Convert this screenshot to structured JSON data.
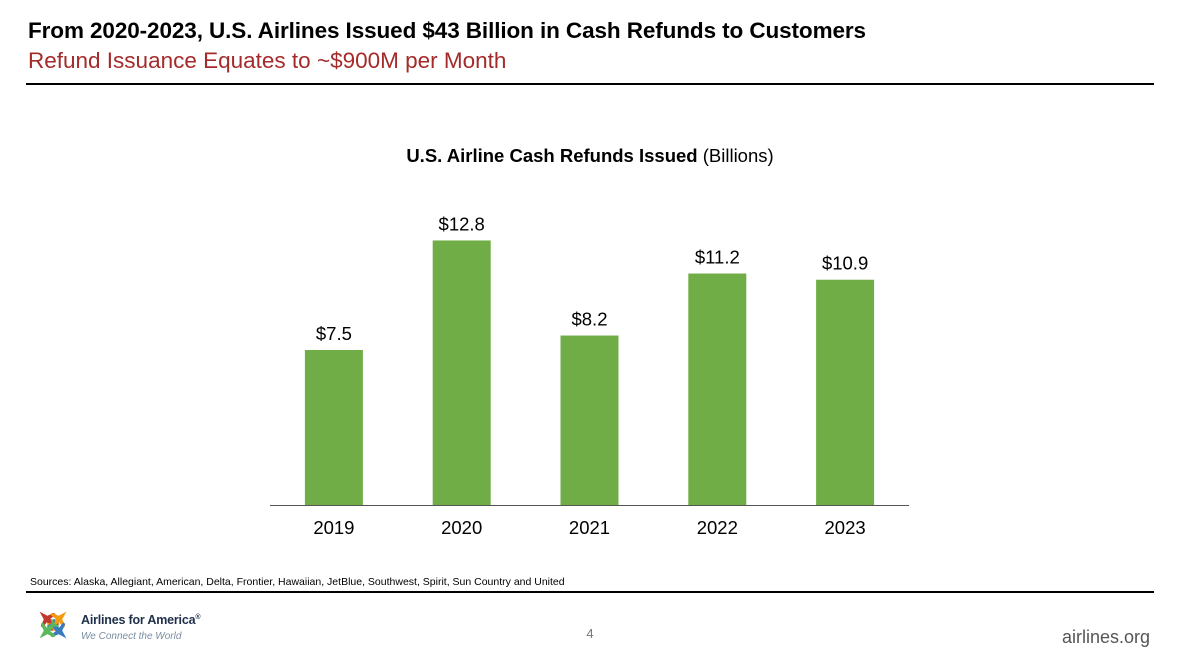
{
  "slide": {
    "title": "From 2020-2023, U.S. Airlines Issued $43 Billion in Cash Refunds to Customers",
    "subtitle": "Refund Issuance Equates to ~$900M per Month",
    "sources": "Sources: Alaska, Allegiant, American, Delta, Frontier, Hawaiian, JetBlue, Southwest, Spirit, Sun Country and United",
    "page_number": "4",
    "website": "airlines.org",
    "logo_text": "Airlines for America",
    "logo_registered": "®",
    "logo_tagline": "We Connect the World"
  },
  "colors": {
    "title": "#000000",
    "subtitle": "#a52a2a",
    "bar": "#70ad47",
    "logo_red": "#c0392b",
    "logo_orange": "#f39c12",
    "logo_green": "#5cb85c",
    "logo_blue": "#3a7bbf"
  },
  "chart_data": {
    "type": "bar",
    "title_bold": "U.S. Airline Cash Refunds Issued",
    "title_unit": "(Billions)",
    "categories": [
      "2019",
      "2020",
      "2021",
      "2022",
      "2023"
    ],
    "values": [
      7.5,
      12.8,
      8.2,
      11.2,
      10.9
    ],
    "data_labels": [
      "$7.5",
      "$12.8",
      "$8.2",
      "$11.2",
      "$10.9"
    ],
    "ylim": [
      0,
      15
    ],
    "grid": false,
    "legend": "none"
  }
}
